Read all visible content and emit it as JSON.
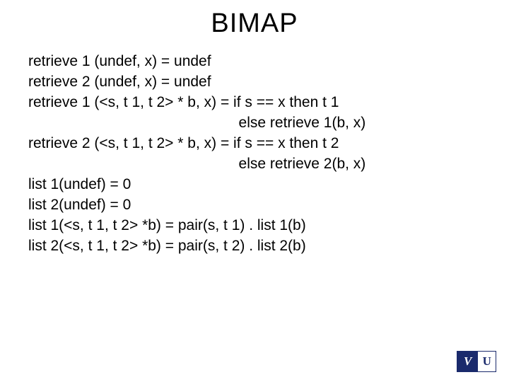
{
  "title": "BIMAP",
  "lines": [
    "retrieve 1 (undef, x) = undef",
    "retrieve 2 (undef, x) = undef",
    "retrieve 1 (<s, t 1, t 2> * b, x) = if s == x then t 1",
    "                                                   else retrieve 1(b, x)",
    "retrieve 2 (<s, t 1, t 2> * b, x) = if s == x then t 2",
    "                                                   else retrieve 2(b, x)",
    "list 1(undef) = 0",
    "list 2(undef) = 0",
    "list 1(<s, t 1, t 2> *b) = pair(s, t 1) . list 1(b)",
    "list 2(<s, t 1, t 2> *b) = pair(s, t 2) . list 2(b)"
  ],
  "logo": {
    "left": "V",
    "right": "U"
  },
  "colors": {
    "background": "#ffffff",
    "text": "#000000",
    "logo_primary": "#1a2a6c",
    "logo_bg": "#ffffff"
  },
  "typography": {
    "title_fontsize": 38,
    "body_fontsize": 21,
    "font_family": "Arial"
  }
}
